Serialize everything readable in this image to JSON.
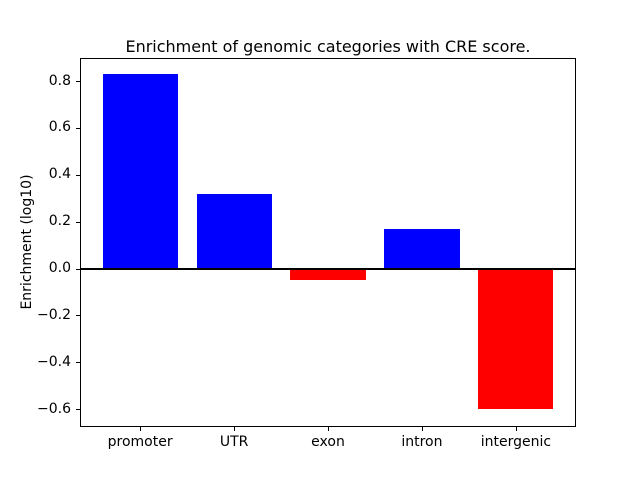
{
  "chart_data": {
    "type": "bar",
    "title": "Enrichment of genomic categories with CRE score.",
    "xlabel": "",
    "ylabel": "Enrichment (log10)",
    "categories": [
      "promoter",
      "UTR",
      "exon",
      "intron",
      "intergenic"
    ],
    "values": [
      0.83,
      0.32,
      -0.05,
      0.17,
      -0.6
    ],
    "bar_colors": [
      "#0000ff",
      "#0000ff",
      "#ff0000",
      "#0000ff",
      "#ff0000"
    ],
    "positive_color": "#0000ff",
    "negative_color": "#ff0000",
    "yticks": [
      0.8,
      0.6,
      0.4,
      0.2,
      0.0,
      -0.2,
      -0.4,
      -0.6
    ],
    "ytick_labels": [
      "0.8",
      "0.6",
      "0.4",
      "0.2",
      "0.0",
      "−0.2",
      "−0.4",
      "−0.6"
    ],
    "ylim": [
      -0.676,
      0.898
    ],
    "xlim": [
      -0.64,
      4.64
    ],
    "bar_width": 0.8,
    "grid": false,
    "legend_position": "none",
    "zero_line": true,
    "background_color": "#ffffff",
    "axis_color": "#000000"
  }
}
